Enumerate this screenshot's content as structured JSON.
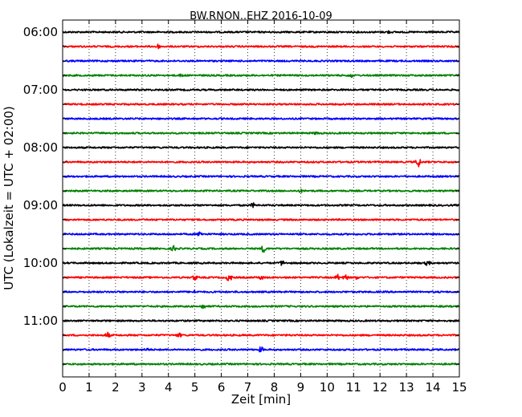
{
  "chart_data": {
    "type": "line",
    "title": "BW.RNON..EHZ 2016-10-09",
    "xlabel": "Zeit  [min]",
    "ylabel": "UTC (Lokalzeit = UTC + 02:00)",
    "xlim": [
      0,
      15
    ],
    "x_ticks": [
      "0",
      "1",
      "2",
      "3",
      "4",
      "5",
      "6",
      "7",
      "8",
      "9",
      "10",
      "11",
      "12",
      "13",
      "14",
      "15"
    ],
    "y_ticks": [
      "06:00",
      "07:00",
      "08:00",
      "09:00",
      "10:00",
      "11:00"
    ],
    "grid": true,
    "trace_colors": [
      "#000000",
      "#ff0000",
      "#0000ff",
      "#008000"
    ],
    "traces": [
      {
        "start": "06:00",
        "events": [
          {
            "x": 12.3,
            "amp": 0.8
          }
        ]
      },
      {
        "start": "06:15",
        "events": [
          {
            "x": 3.6,
            "amp": 1.5
          }
        ]
      },
      {
        "start": "06:30",
        "events": []
      },
      {
        "start": "06:45",
        "events": [
          {
            "x": 4.5,
            "amp": 1
          },
          {
            "x": 10.9,
            "amp": 1.5
          }
        ]
      },
      {
        "start": "07:00",
        "events": []
      },
      {
        "start": "07:15",
        "events": []
      },
      {
        "start": "07:30",
        "events": []
      },
      {
        "start": "07:45",
        "events": [
          {
            "x": 9.6,
            "amp": 1
          }
        ]
      },
      {
        "start": "08:00",
        "events": []
      },
      {
        "start": "08:15",
        "events": [
          {
            "x": 13.45,
            "amp": 4
          }
        ]
      },
      {
        "start": "08:30",
        "events": []
      },
      {
        "start": "08:45",
        "events": [
          {
            "x": 9.0,
            "amp": 1
          }
        ]
      },
      {
        "start": "09:00",
        "events": [
          {
            "x": 7.2,
            "amp": 1.5
          }
        ]
      },
      {
        "start": "09:15",
        "events": []
      },
      {
        "start": "09:30",
        "events": [
          {
            "x": 5.2,
            "amp": 2
          }
        ]
      },
      {
        "start": "09:45",
        "events": [
          {
            "x": 4.2,
            "amp": 2
          },
          {
            "x": 7.6,
            "amp": 3
          }
        ]
      },
      {
        "start": "10:00",
        "events": [
          {
            "x": 8.3,
            "amp": 2
          },
          {
            "x": 13.8,
            "amp": 2
          }
        ]
      },
      {
        "start": "10:15",
        "events": [
          {
            "x": 5.0,
            "amp": 2
          },
          {
            "x": 6.3,
            "amp": 4
          },
          {
            "x": 7.5,
            "amp": 1.5
          },
          {
            "x": 10.4,
            "amp": 2
          },
          {
            "x": 10.7,
            "amp": 2
          },
          {
            "x": 11.1,
            "amp": 1
          }
        ]
      },
      {
        "start": "10:30",
        "events": [
          {
            "x": 5.0,
            "amp": 1
          }
        ]
      },
      {
        "start": "10:45",
        "events": [
          {
            "x": 5.3,
            "amp": 2
          }
        ]
      },
      {
        "start": "11:00",
        "events": []
      },
      {
        "start": "11:15",
        "events": [
          {
            "x": 1.7,
            "amp": 2
          },
          {
            "x": 4.4,
            "amp": 1.5
          }
        ]
      },
      {
        "start": "11:30",
        "events": [
          {
            "x": 3.2,
            "amp": 1
          },
          {
            "x": 7.5,
            "amp": 2
          }
        ]
      },
      {
        "start": "11:45",
        "events": []
      }
    ]
  }
}
